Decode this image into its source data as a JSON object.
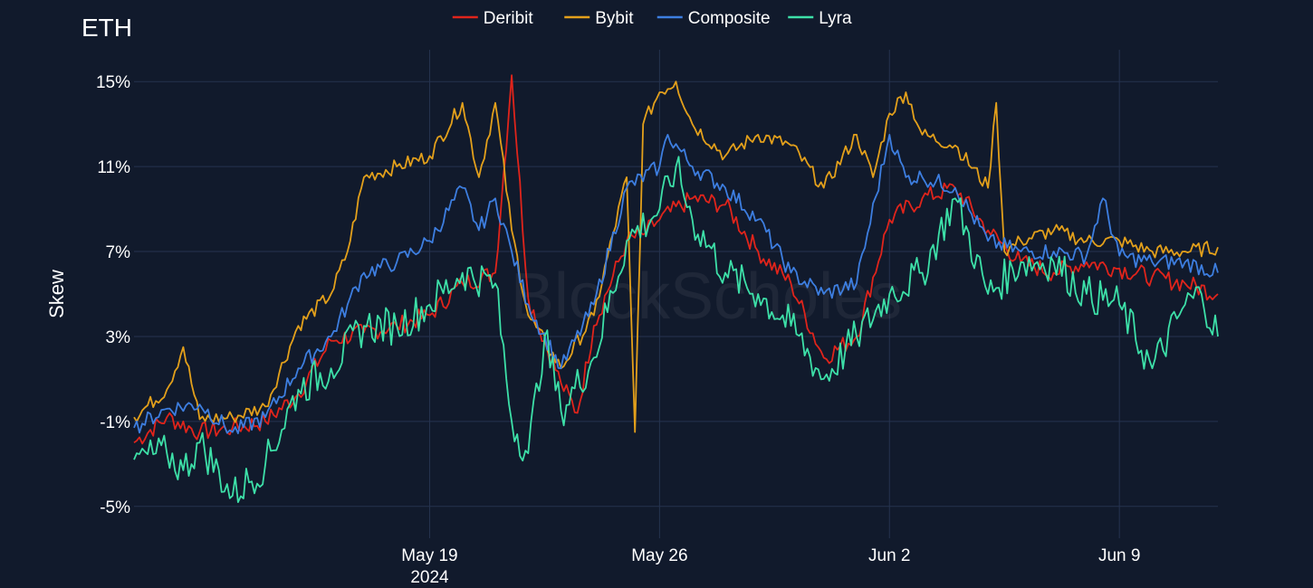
{
  "chart_data": {
    "type": "line",
    "title": "ETH",
    "ylabel": "Skew",
    "xlabel": "",
    "watermark": "BlockScholes",
    "x_range": [
      "2024-05-10",
      "2024-06-12"
    ],
    "ylim": [
      -6.5,
      16.5
    ],
    "y_ticks": [
      -5,
      -1,
      3,
      7,
      11,
      15
    ],
    "y_tick_labels": [
      "-5%",
      "-1%",
      "3%",
      "7%",
      "11%",
      "15%"
    ],
    "x_ticks": [
      "2024-05-19",
      "2024-05-26",
      "2024-06-02",
      "2024-06-09"
    ],
    "x_tick_labels": [
      "May 19",
      "May 26",
      "Jun 2",
      "Jun 9"
    ],
    "x_tick_sub": "2024",
    "legend_position": "top-center",
    "grid": true,
    "series": [
      {
        "name": "Deribit",
        "color": "#e0241b",
        "points": [
          [
            "2024-05-10",
            -2.0
          ],
          [
            "2024-05-11",
            -0.8
          ],
          [
            "2024-05-12",
            -1.5
          ],
          [
            "2024-05-13",
            -1.3
          ],
          [
            "2024-05-14",
            -1.0
          ],
          [
            "2024-05-15",
            0.3
          ],
          [
            "2024-05-16",
            2.8
          ],
          [
            "2024-05-17",
            3.2
          ],
          [
            "2024-05-18",
            3.5
          ],
          [
            "2024-05-19",
            4.0
          ],
          [
            "2024-05-20",
            5.5
          ],
          [
            "2024-05-21",
            6.0
          ],
          [
            "2024-05-21T12:00",
            15.3
          ],
          [
            "2024-05-22",
            4.8
          ],
          [
            "2024-05-23",
            0.8
          ],
          [
            "2024-05-23T12:00",
            -0.6
          ],
          [
            "2024-05-24",
            3.5
          ],
          [
            "2024-05-25",
            7.5
          ],
          [
            "2024-05-25T12:00",
            7.8
          ],
          [
            "2024-05-26",
            8.5
          ],
          [
            "2024-05-27",
            9.5
          ],
          [
            "2024-05-28",
            9.2
          ],
          [
            "2024-05-29",
            7.0
          ],
          [
            "2024-05-30",
            5.5
          ],
          [
            "2024-05-31",
            2.0
          ],
          [
            "2024-06-01",
            3.0
          ],
          [
            "2024-06-02",
            8.5
          ],
          [
            "2024-06-03",
            9.5
          ],
          [
            "2024-06-04",
            10.0
          ],
          [
            "2024-06-05",
            8.0
          ],
          [
            "2024-06-06",
            6.5
          ],
          [
            "2024-06-07",
            6.0
          ],
          [
            "2024-06-08",
            6.5
          ],
          [
            "2024-06-09",
            6.2
          ],
          [
            "2024-06-10",
            5.8
          ],
          [
            "2024-06-11",
            5.5
          ],
          [
            "2024-06-12",
            5.0
          ]
        ]
      },
      {
        "name": "Bybit",
        "color": "#e3a01b",
        "points": [
          [
            "2024-05-10",
            -0.8
          ],
          [
            "2024-05-11",
            0.5
          ],
          [
            "2024-05-11T12:00",
            2.5
          ],
          [
            "2024-05-12",
            -0.9
          ],
          [
            "2024-05-13",
            -0.8
          ],
          [
            "2024-05-14",
            -0.3
          ],
          [
            "2024-05-15",
            3.5
          ],
          [
            "2024-05-16",
            5.0
          ],
          [
            "2024-05-16T12:00",
            7.0
          ],
          [
            "2024-05-17",
            10.5
          ],
          [
            "2024-05-18",
            11.0
          ],
          [
            "2024-05-19",
            11.5
          ],
          [
            "2024-05-20",
            14.0
          ],
          [
            "2024-05-20T12:00",
            10.5
          ],
          [
            "2024-05-21",
            14.0
          ],
          [
            "2024-05-21T12:00",
            8.0
          ],
          [
            "2024-05-22",
            4.0
          ],
          [
            "2024-05-23",
            1.5
          ],
          [
            "2024-05-24",
            4.0
          ],
          [
            "2024-05-25",
            10.5
          ],
          [
            "2024-05-25T06:00",
            -1.5
          ],
          [
            "2024-05-25T12:00",
            13.0
          ],
          [
            "2024-05-26",
            14.5
          ],
          [
            "2024-05-26T12:00",
            15.0
          ],
          [
            "2024-05-27",
            13.0
          ],
          [
            "2024-05-28",
            11.5
          ],
          [
            "2024-05-29",
            12.5
          ],
          [
            "2024-05-30",
            12.0
          ],
          [
            "2024-05-31",
            10.0
          ],
          [
            "2024-06-01",
            12.5
          ],
          [
            "2024-06-01T12:00",
            10.5
          ],
          [
            "2024-06-02",
            13.5
          ],
          [
            "2024-06-02T12:00",
            14.5
          ],
          [
            "2024-06-03",
            12.5
          ],
          [
            "2024-06-04",
            12.0
          ],
          [
            "2024-06-05",
            10.0
          ],
          [
            "2024-06-05T06:00",
            14.0
          ],
          [
            "2024-06-05T12:00",
            7.0
          ],
          [
            "2024-06-06",
            7.5
          ],
          [
            "2024-06-07",
            8.0
          ],
          [
            "2024-06-08",
            7.5
          ],
          [
            "2024-06-09",
            7.5
          ],
          [
            "2024-06-10",
            7.0
          ],
          [
            "2024-06-11",
            7.0
          ],
          [
            "2024-06-12",
            7.2
          ]
        ]
      },
      {
        "name": "Composite",
        "color": "#3d7ee0",
        "points": [
          [
            "2024-05-10",
            -1.3
          ],
          [
            "2024-05-11",
            -0.4
          ],
          [
            "2024-05-12",
            -0.2
          ],
          [
            "2024-05-13",
            -1.5
          ],
          [
            "2024-05-14",
            -0.8
          ],
          [
            "2024-05-15",
            1.5
          ],
          [
            "2024-05-16",
            3.0
          ],
          [
            "2024-05-16T12:00",
            4.5
          ],
          [
            "2024-05-17",
            6.0
          ],
          [
            "2024-05-18",
            6.5
          ],
          [
            "2024-05-19",
            7.5
          ],
          [
            "2024-05-20",
            10.0
          ],
          [
            "2024-05-20T12:00",
            8.0
          ],
          [
            "2024-05-21",
            9.5
          ],
          [
            "2024-05-21T12:00",
            7.0
          ],
          [
            "2024-05-22",
            4.5
          ],
          [
            "2024-05-23",
            1.5
          ],
          [
            "2024-05-24",
            4.5
          ],
          [
            "2024-05-25",
            10.0
          ],
          [
            "2024-05-26",
            11.0
          ],
          [
            "2024-05-26T06:00",
            12.5
          ],
          [
            "2024-05-27",
            11.0
          ],
          [
            "2024-05-28",
            10.0
          ],
          [
            "2024-05-29",
            8.5
          ],
          [
            "2024-05-30",
            6.0
          ],
          [
            "2024-05-31",
            5.0
          ],
          [
            "2024-06-01",
            5.5
          ],
          [
            "2024-06-02",
            12.5
          ],
          [
            "2024-06-02T12:00",
            10.5
          ],
          [
            "2024-06-03",
            10.5
          ],
          [
            "2024-06-04",
            10.0
          ],
          [
            "2024-06-05",
            7.5
          ],
          [
            "2024-06-06",
            7.0
          ],
          [
            "2024-06-07",
            7.0
          ],
          [
            "2024-06-08",
            6.8
          ],
          [
            "2024-06-08T12:00",
            9.5
          ],
          [
            "2024-06-09",
            6.8
          ],
          [
            "2024-06-10",
            6.5
          ],
          [
            "2024-06-11",
            6.5
          ],
          [
            "2024-06-12",
            6.0
          ]
        ]
      },
      {
        "name": "Lyra",
        "color": "#3de0a8",
        "points": [
          [
            "2024-05-10",
            -2.8
          ],
          [
            "2024-05-11",
            -2.5
          ],
          [
            "2024-05-11T12:00",
            -3.3
          ],
          [
            "2024-05-12",
            -2.0
          ],
          [
            "2024-05-13",
            -4.5
          ],
          [
            "2024-05-14",
            -3.0
          ],
          [
            "2024-05-15",
            0.5
          ],
          [
            "2024-05-16",
            1.5
          ],
          [
            "2024-05-17",
            3.5
          ],
          [
            "2024-05-18",
            3.5
          ],
          [
            "2024-05-19",
            4.5
          ],
          [
            "2024-05-20",
            6.0
          ],
          [
            "2024-05-21",
            5.5
          ],
          [
            "2024-05-21T12:00",
            -1.0
          ],
          [
            "2024-05-22",
            -2.5
          ],
          [
            "2024-05-22T12:00",
            3.0
          ],
          [
            "2024-05-23",
            -0.5
          ],
          [
            "2024-05-24",
            2.0
          ],
          [
            "2024-05-25",
            7.5
          ],
          [
            "2024-05-26",
            9.0
          ],
          [
            "2024-05-26T12:00",
            11.0
          ],
          [
            "2024-05-27",
            8.5
          ],
          [
            "2024-05-28",
            6.0
          ],
          [
            "2024-05-29",
            5.0
          ],
          [
            "2024-05-30",
            3.5
          ],
          [
            "2024-05-31",
            1.0
          ],
          [
            "2024-06-01",
            3.0
          ],
          [
            "2024-06-02",
            5.0
          ],
          [
            "2024-06-03",
            6.0
          ],
          [
            "2024-06-04",
            9.5
          ],
          [
            "2024-06-05",
            5.0
          ],
          [
            "2024-06-06",
            6.5
          ],
          [
            "2024-06-07",
            6.5
          ],
          [
            "2024-06-08",
            5.0
          ],
          [
            "2024-06-09",
            4.5
          ],
          [
            "2024-06-10",
            1.5
          ],
          [
            "2024-06-11",
            4.5
          ],
          [
            "2024-06-11T12:00",
            5.0
          ],
          [
            "2024-06-12",
            3.0
          ]
        ]
      }
    ]
  }
}
